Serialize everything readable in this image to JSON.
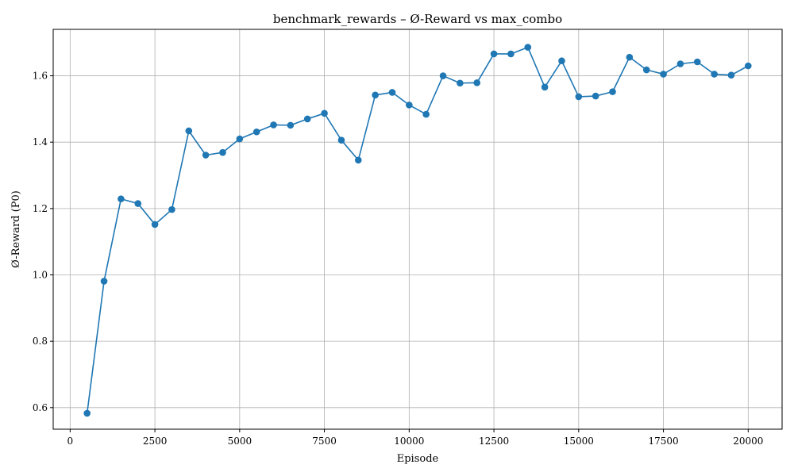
{
  "chart_data": {
    "type": "line",
    "title": "benchmark_rewards – Ø-Reward vs max_combo",
    "xlabel": "Episode",
    "ylabel": "Ø-Reward (P0)",
    "xlim": [
      -500,
      21000
    ],
    "ylim": [
      0.535,
      1.74
    ],
    "xticks": [
      0,
      2500,
      5000,
      7500,
      10000,
      12500,
      15000,
      17500,
      20000
    ],
    "yticks": [
      0.6,
      0.8,
      1.0,
      1.2,
      1.4,
      1.6
    ],
    "ytick_labels": [
      "0.6",
      "0.8",
      "1.0",
      "1.2",
      "1.4",
      "1.6"
    ],
    "grid": true,
    "series_color": "#1f77b4",
    "x": [
      500,
      1000,
      1500,
      2000,
      2500,
      3000,
      3500,
      4000,
      4500,
      5000,
      5500,
      6000,
      6500,
      7000,
      7500,
      8000,
      8500,
      9000,
      9500,
      10000,
      10500,
      11000,
      11500,
      12000,
      12500,
      13000,
      13500,
      14000,
      14500,
      15000,
      15500,
      16000,
      16500,
      17000,
      17500,
      18000,
      18500,
      19000,
      19500,
      20000
    ],
    "y": [
      0.583,
      0.981,
      1.229,
      1.215,
      1.152,
      1.197,
      1.434,
      1.361,
      1.369,
      1.41,
      1.431,
      1.452,
      1.451,
      1.47,
      1.487,
      1.406,
      1.346,
      1.542,
      1.55,
      1.512,
      1.484,
      1.6,
      1.578,
      1.579,
      1.666,
      1.666,
      1.686,
      1.566,
      1.645,
      1.537,
      1.539,
      1.552,
      1.656,
      1.618,
      1.605,
      1.636,
      1.642,
      1.605,
      1.602,
      1.63
    ]
  }
}
